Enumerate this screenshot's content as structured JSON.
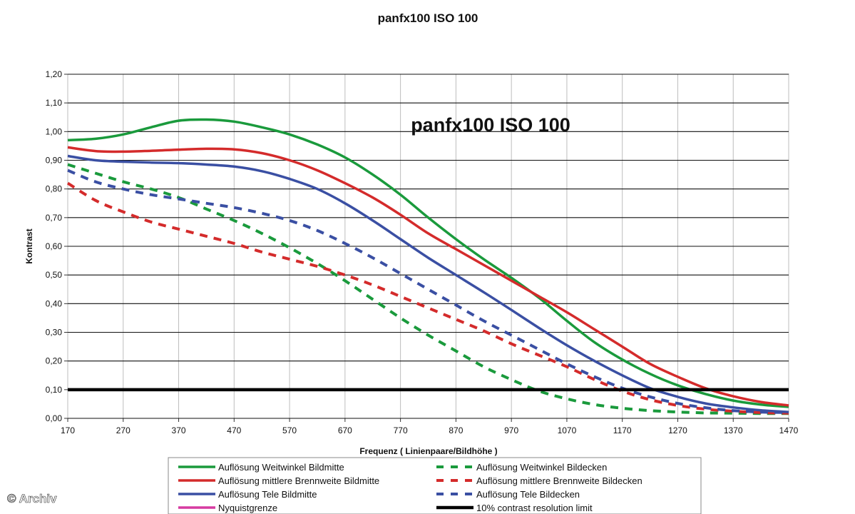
{
  "watermark": "© Archiv",
  "chart_data": {
    "type": "line",
    "title": "panfx100 ISO 100",
    "inner_title": "panfx100 ISO 100",
    "xlabel": "Frequenz ( Linienpaare/Bildhöhe )",
    "ylabel": "Kontrast",
    "xlim": [
      170,
      1470
    ],
    "ylim": [
      0,
      1.2
    ],
    "x_ticks": [
      "170",
      "270",
      "370",
      "470",
      "570",
      "670",
      "770",
      "870",
      "970",
      "1070",
      "1170",
      "1270",
      "1370",
      "1470"
    ],
    "y_ticks": [
      "0,00",
      "0,10",
      "0,20",
      "0,30",
      "0,40",
      "0,50",
      "0,60",
      "0,70",
      "0,80",
      "0,90",
      "1,00",
      "1,10",
      "1,20"
    ],
    "grid": true,
    "legend_position": "bottom",
    "series": [
      {
        "name": "Auflösung Weitwinkel Bildmitte",
        "color": "#1a9a3c",
        "style": "solid",
        "x": [
          170,
          220,
          270,
          320,
          370,
          420,
          470,
          520,
          570,
          620,
          670,
          720,
          770,
          820,
          870,
          920,
          970,
          1020,
          1070,
          1120,
          1170,
          1220,
          1270,
          1320,
          1370,
          1420,
          1470
        ],
        "y": [
          0.97,
          0.975,
          0.99,
          1.015,
          1.038,
          1.042,
          1.035,
          1.015,
          0.99,
          0.955,
          0.91,
          0.85,
          0.78,
          0.7,
          0.625,
          0.555,
          0.49,
          0.42,
          0.34,
          0.265,
          0.205,
          0.155,
          0.115,
          0.085,
          0.062,
          0.048,
          0.04
        ]
      },
      {
        "name": "Auflösung mittlere Brennweite Bildmitte",
        "color": "#d42b2b",
        "style": "solid",
        "x": [
          170,
          220,
          270,
          320,
          370,
          420,
          470,
          520,
          570,
          620,
          670,
          720,
          770,
          820,
          870,
          920,
          970,
          1020,
          1070,
          1120,
          1170,
          1220,
          1270,
          1320,
          1370,
          1420,
          1470
        ],
        "y": [
          0.945,
          0.932,
          0.93,
          0.933,
          0.937,
          0.94,
          0.938,
          0.925,
          0.9,
          0.865,
          0.82,
          0.77,
          0.71,
          0.645,
          0.59,
          0.535,
          0.48,
          0.425,
          0.37,
          0.31,
          0.25,
          0.19,
          0.145,
          0.105,
          0.077,
          0.057,
          0.045
        ]
      },
      {
        "name": "Auflösung Tele Bildmitte",
        "color": "#3a4fa3",
        "style": "solid",
        "x": [
          170,
          220,
          270,
          320,
          370,
          420,
          470,
          520,
          570,
          620,
          670,
          720,
          770,
          820,
          870,
          920,
          970,
          1020,
          1070,
          1120,
          1170,
          1220,
          1270,
          1320,
          1370,
          1420,
          1470
        ],
        "y": [
          0.915,
          0.9,
          0.895,
          0.892,
          0.89,
          0.885,
          0.878,
          0.862,
          0.835,
          0.8,
          0.75,
          0.69,
          0.625,
          0.56,
          0.5,
          0.44,
          0.378,
          0.315,
          0.255,
          0.2,
          0.15,
          0.105,
          0.075,
          0.052,
          0.038,
          0.028,
          0.022
        ]
      },
      {
        "name": "Nyquistgrenze",
        "color": "#d63aa0",
        "style": "solid",
        "x": [],
        "y": []
      },
      {
        "name": "Auflösung Weitwinkel Bildecken",
        "color": "#1a9a3c",
        "style": "dashed",
        "x": [
          170,
          220,
          270,
          320,
          370,
          420,
          470,
          520,
          570,
          620,
          670,
          720,
          770,
          820,
          870,
          920,
          970,
          1020,
          1070,
          1120,
          1170,
          1220,
          1270,
          1320,
          1370,
          1420,
          1470
        ],
        "y": [
          0.885,
          0.855,
          0.825,
          0.8,
          0.77,
          0.73,
          0.69,
          0.645,
          0.595,
          0.54,
          0.48,
          0.415,
          0.35,
          0.29,
          0.235,
          0.18,
          0.135,
          0.095,
          0.068,
          0.048,
          0.035,
          0.027,
          0.022,
          0.019,
          0.018,
          0.017,
          0.017
        ]
      },
      {
        "name": "Auflösung mittlere Brennweite Bildecken",
        "color": "#d42b2b",
        "style": "dashed",
        "x": [
          170,
          220,
          270,
          320,
          370,
          420,
          470,
          520,
          570,
          620,
          670,
          720,
          770,
          820,
          870,
          920,
          970,
          1020,
          1070,
          1120,
          1170,
          1220,
          1270,
          1320,
          1370,
          1420,
          1470
        ],
        "y": [
          0.82,
          0.76,
          0.72,
          0.685,
          0.66,
          0.635,
          0.61,
          0.58,
          0.555,
          0.53,
          0.5,
          0.465,
          0.425,
          0.385,
          0.345,
          0.305,
          0.26,
          0.22,
          0.18,
          0.135,
          0.095,
          0.065,
          0.045,
          0.032,
          0.025,
          0.02,
          0.018
        ]
      },
      {
        "name": "Auflösung Tele Bildecken",
        "color": "#3a4fa3",
        "style": "dashed",
        "x": [
          170,
          220,
          270,
          320,
          370,
          420,
          470,
          520,
          570,
          620,
          670,
          720,
          770,
          820,
          870,
          920,
          970,
          1020,
          1070,
          1120,
          1170,
          1220,
          1270,
          1320,
          1370,
          1420,
          1470
        ],
        "y": [
          0.865,
          0.825,
          0.8,
          0.78,
          0.765,
          0.75,
          0.735,
          0.715,
          0.69,
          0.655,
          0.61,
          0.56,
          0.505,
          0.45,
          0.395,
          0.34,
          0.29,
          0.24,
          0.19,
          0.145,
          0.105,
          0.075,
          0.052,
          0.037,
          0.027,
          0.022,
          0.02
        ]
      },
      {
        "name": "10% contrast resolution limit",
        "color": "#000000",
        "style": "solid-thick",
        "x": [
          170,
          1470
        ],
        "y": [
          0.1,
          0.1
        ]
      }
    ],
    "legend_order": [
      "Auflösung Weitwinkel Bildmitte",
      "Auflösung Weitwinkel Bildecken",
      "Auflösung mittlere Brennweite Bildmitte",
      "Auflösung mittlere Brennweite Bildecken",
      "Auflösung Tele Bildmitte",
      "Auflösung Tele Bildecken",
      "Nyquistgrenze",
      "10% contrast resolution limit"
    ]
  }
}
